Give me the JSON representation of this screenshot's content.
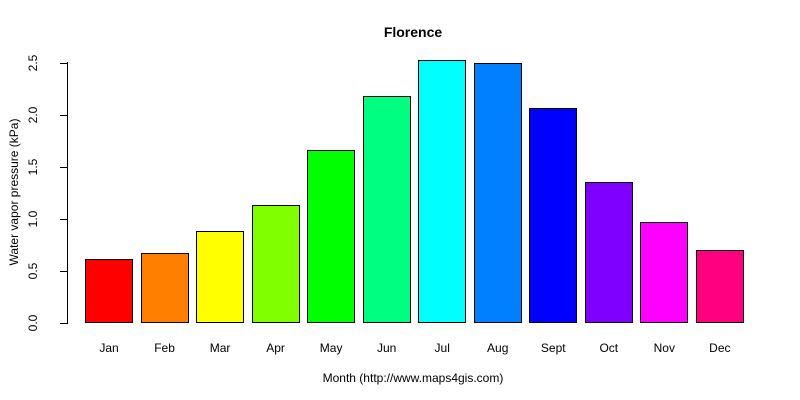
{
  "title": "Florence",
  "chart_data": {
    "type": "bar",
    "title": "Florence",
    "xlabel": "Month (http://www.maps4gis.com)",
    "ylabel": "Water vapor pressure (kPa)",
    "categories": [
      "Jan",
      "Feb",
      "Mar",
      "Apr",
      "May",
      "Jun",
      "Jul",
      "Aug",
      "Sept",
      "Oct",
      "Nov",
      "Dec"
    ],
    "values": [
      0.62,
      0.67,
      0.88,
      1.13,
      1.66,
      2.18,
      2.53,
      2.5,
      2.07,
      1.36,
      0.97,
      0.7
    ],
    "bar_colors": [
      "#FF0000",
      "#FF8000",
      "#FFFF00",
      "#80FF00",
      "#00FF00",
      "#00FF80",
      "#00FFFF",
      "#0080FF",
      "#0000FF",
      "#8000FF",
      "#FF00FF",
      "#FF0080"
    ],
    "bar_border_color": "#000000",
    "ylim": [
      0,
      2.5
    ],
    "ytick_labels": [
      "0.0",
      "0.5",
      "1.0",
      "1.5",
      "2.0",
      "2.5"
    ],
    "ytick_values": [
      0,
      0.5,
      1.0,
      1.5,
      2.0,
      2.5
    ],
    "grid": false,
    "legend_position": "none",
    "background_color": "#FFFFFF",
    "text_color": "#000000"
  }
}
